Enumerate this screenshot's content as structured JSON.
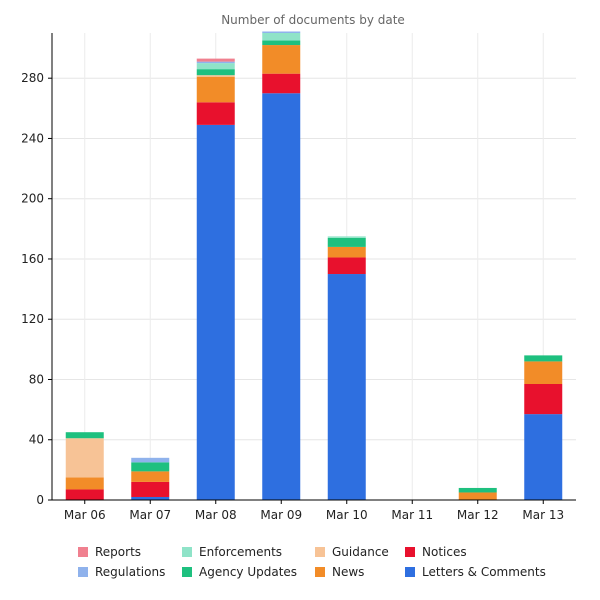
{
  "chart_data": {
    "type": "bar",
    "stacked": true,
    "title": "Number of documents by date",
    "xlabel": "",
    "ylabel": "",
    "ylim": [
      0,
      310
    ],
    "yticks": [
      0,
      40,
      80,
      120,
      160,
      200,
      240,
      280
    ],
    "grid": true,
    "legend_position": "bottom",
    "categories": [
      "Mar 06",
      "Mar 07",
      "Mar 08",
      "Mar 09",
      "Mar 10",
      "Mar 11",
      "Mar 12",
      "Mar 13"
    ],
    "series": [
      {
        "name": "Letters & Comments",
        "color": "#2e6fe0",
        "values": [
          0,
          2,
          249,
          270,
          150,
          0,
          0,
          57
        ]
      },
      {
        "name": "Notices",
        "color": "#e8112d",
        "values": [
          7,
          10,
          15,
          13,
          11,
          0,
          0,
          20
        ]
      },
      {
        "name": "News",
        "color": "#f28c28",
        "values": [
          8,
          7,
          17,
          19,
          7,
          0,
          5,
          15
        ]
      },
      {
        "name": "Guidance",
        "color": "#f7c396",
        "values": [
          26,
          0,
          1,
          0,
          0,
          0,
          0,
          0
        ]
      },
      {
        "name": "Agency Updates",
        "color": "#1ec07f",
        "values": [
          4,
          6,
          4,
          3,
          6,
          0,
          3,
          4
        ]
      },
      {
        "name": "Enforcements",
        "color": "#8fe3c8",
        "values": [
          0,
          0,
          4,
          5,
          1,
          0,
          0,
          0
        ]
      },
      {
        "name": "Regulations",
        "color": "#8fb2ec",
        "values": [
          0,
          3,
          1,
          1,
          0,
          0,
          0,
          0
        ]
      },
      {
        "name": "Reports",
        "color": "#f0808f",
        "values": [
          0,
          0,
          2,
          0,
          0,
          0,
          0,
          0
        ]
      }
    ],
    "legend": [
      {
        "name": "Reports",
        "color": "#f0808f"
      },
      {
        "name": "Enforcements",
        "color": "#8fe3c8"
      },
      {
        "name": "Guidance",
        "color": "#f7c396"
      },
      {
        "name": "Notices",
        "color": "#e8112d"
      },
      {
        "name": "Regulations",
        "color": "#8fb2ec"
      },
      {
        "name": "Agency Updates",
        "color": "#1ec07f"
      },
      {
        "name": "News",
        "color": "#f28c28"
      },
      {
        "name": "Letters & Comments",
        "color": "#2e6fe0"
      }
    ]
  }
}
